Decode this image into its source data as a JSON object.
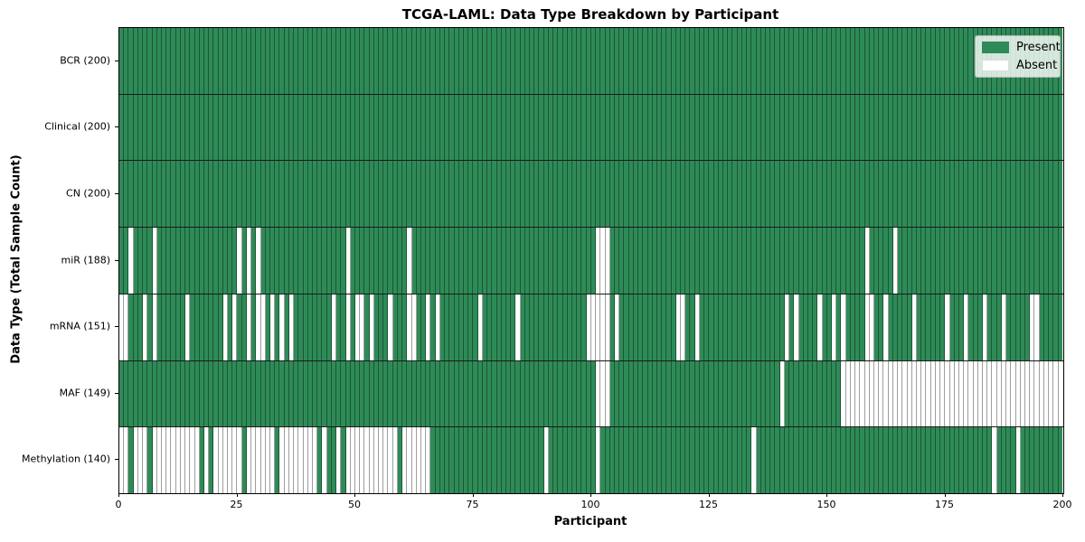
{
  "figure": {
    "title": "TCGA-LAML: Data Type Breakdown by Participant",
    "xlabel": "Participant",
    "ylabel": "Data Type (Total Sample Count)"
  },
  "legend": {
    "items": [
      {
        "label": "Present",
        "color": "#2e8b57"
      },
      {
        "label": "Absent",
        "color": "#ffffff"
      }
    ]
  },
  "colors": {
    "present": "#2e8b57",
    "absent": "#ffffff",
    "cell_edge": "rgba(0,0,0,0.38)",
    "row_divider": "#1a1a1a",
    "spine": "#000000"
  },
  "chart_data": {
    "type": "heatmap",
    "title": "TCGA-LAML: Data Type Breakdown by Participant",
    "xlabel": "Participant",
    "ylabel": "Data Type (Total Sample Count)",
    "x_min": 0,
    "x_max": 200,
    "x_ticks": [
      0,
      25,
      50,
      75,
      100,
      125,
      150,
      175,
      200
    ],
    "n_participants": 200,
    "cell_states": {
      "present": "Present",
      "absent": "Absent"
    },
    "legend_position": "upper right",
    "rows": [
      {
        "label": "BCR (200)",
        "data_type": "BCR",
        "total_samples": 200,
        "absent_participants": []
      },
      {
        "label": "Clinical (200)",
        "data_type": "Clinical",
        "total_samples": 200,
        "absent_participants": []
      },
      {
        "label": "CN (200)",
        "data_type": "CN",
        "total_samples": 200,
        "absent_participants": []
      },
      {
        "label": "miR (188)",
        "data_type": "miR",
        "total_samples": 188,
        "absent_participants": [
          2,
          7,
          25,
          27,
          29,
          48,
          61,
          101,
          102,
          103,
          158,
          164
        ]
      },
      {
        "label": "mRNA (151)",
        "data_type": "mRNA",
        "total_samples": 151,
        "absent_participants": [
          0,
          1,
          5,
          7,
          14,
          22,
          24,
          27,
          29,
          30,
          32,
          34,
          36,
          45,
          48,
          50,
          51,
          53,
          57,
          61,
          62,
          65,
          67,
          76,
          84,
          99,
          100,
          101,
          102,
          103,
          105,
          118,
          119,
          122,
          141,
          143,
          148,
          151,
          153,
          158,
          159,
          162,
          168,
          175,
          179,
          183,
          187,
          193,
          194
        ]
      },
      {
        "label": "MAF (149)",
        "data_type": "MAF",
        "total_samples": 149,
        "absent_participants": [
          101,
          102,
          103,
          140,
          153,
          154,
          155,
          156,
          157,
          158,
          159,
          160,
          161,
          162,
          163,
          164,
          165,
          166,
          167,
          168,
          169,
          170,
          171,
          172,
          173,
          174,
          175,
          176,
          177,
          178,
          179,
          180,
          181,
          182,
          183,
          184,
          185,
          186,
          187,
          188,
          189,
          190,
          191,
          192,
          193,
          194,
          195,
          196,
          197,
          198,
          199
        ]
      },
      {
        "label": "Methylation (140)",
        "data_type": "Methylation",
        "total_samples": 140,
        "absent_participants": [
          0,
          1,
          3,
          4,
          5,
          7,
          8,
          9,
          10,
          11,
          12,
          13,
          14,
          15,
          16,
          18,
          20,
          21,
          22,
          23,
          24,
          25,
          27,
          28,
          29,
          30,
          31,
          32,
          34,
          35,
          36,
          37,
          38,
          39,
          40,
          41,
          43,
          46,
          48,
          49,
          50,
          51,
          52,
          53,
          54,
          55,
          56,
          57,
          58,
          60,
          61,
          62,
          63,
          64,
          65,
          90,
          101,
          134,
          185,
          190
        ]
      }
    ]
  }
}
